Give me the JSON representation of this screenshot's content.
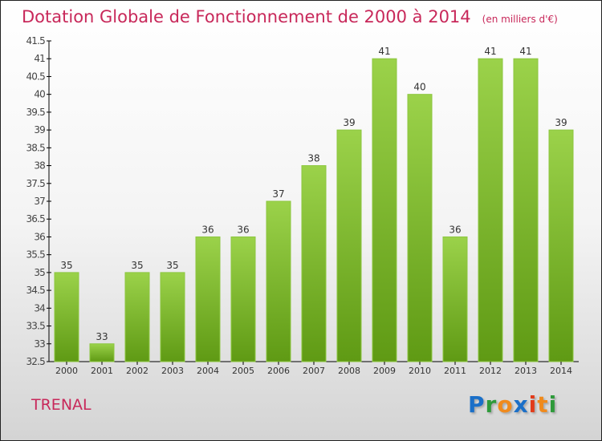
{
  "chart_data": {
    "type": "bar",
    "title": "Dotation Globale de Fonctionnement de 2000 à 2014",
    "subtitle": "(en milliers d'€)",
    "categories": [
      "2000",
      "2001",
      "2002",
      "2003",
      "2004",
      "2005",
      "2006",
      "2007",
      "2008",
      "2009",
      "2010",
      "2011",
      "2012",
      "2013",
      "2014"
    ],
    "values": [
      35,
      33,
      35,
      35,
      36,
      36,
      37,
      38,
      39,
      41,
      40,
      36,
      41,
      41,
      39
    ],
    "ylim": [
      32.5,
      41.5
    ],
    "yticks": [
      "32.5",
      "33",
      "33.5",
      "34",
      "34.5",
      "35",
      "35.5",
      "36",
      "36.5",
      "37",
      "37.5",
      "38",
      "38.5",
      "39",
      "39.5",
      "40",
      "40.5",
      "41",
      "41.5"
    ],
    "xlabel": "",
    "ylabel": "",
    "bar_color": "#7cb82a"
  },
  "commune": "TRENAL",
  "logo": {
    "letters": [
      "P",
      "r",
      "o",
      "x",
      "i",
      "t",
      "i"
    ],
    "colors": [
      "#1a6fc8",
      "#2e9a3a",
      "#f08a1c",
      "#1a6fc8",
      "#e23b1a",
      "#f08a1c",
      "#2e9a3a"
    ]
  }
}
